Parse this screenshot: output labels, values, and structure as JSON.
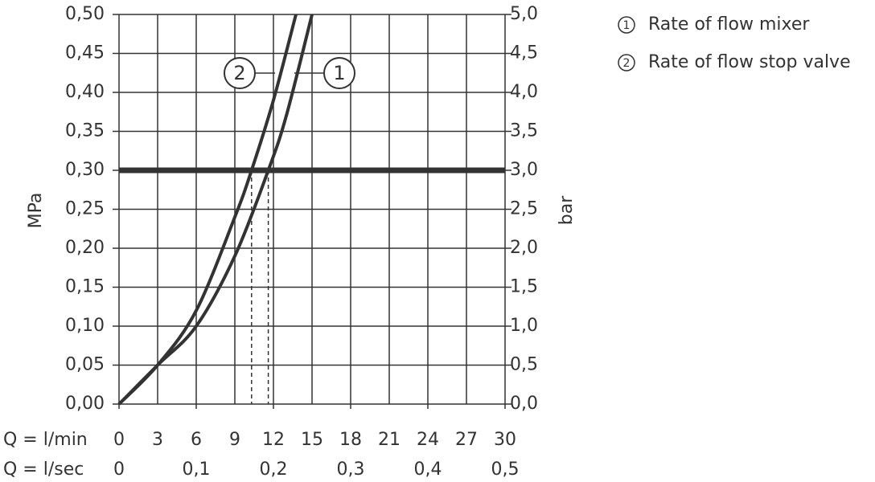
{
  "chart_data": {
    "type": "line",
    "y_label": "MPa",
    "y2_label": "bar",
    "x_label": "Q = l/min",
    "x2_label": "Q = l/sec",
    "xlim": [
      0,
      30
    ],
    "xticks": [
      0,
      3,
      6,
      9,
      12,
      15,
      18,
      21,
      24,
      27,
      30
    ],
    "x2lim": [
      0,
      0.5
    ],
    "x2ticks": [
      0,
      {
        "value": 0.1,
        "label": "0,1"
      },
      {
        "value": 0.2,
        "label": "0,2"
      },
      {
        "value": 0.3,
        "label": "0,3"
      },
      {
        "value": 0.4,
        "label": "0,4"
      },
      {
        "value": 0.5,
        "label": "0,5"
      }
    ],
    "ylim": [
      0,
      0.5
    ],
    "yticks": [
      {
        "value": 0,
        "label": "0,00"
      },
      {
        "value": 0.05,
        "label": "0,05"
      },
      {
        "value": 0.1,
        "label": "0,10"
      },
      {
        "value": 0.15,
        "label": "0,15"
      },
      {
        "value": 0.2,
        "label": "0,20"
      },
      {
        "value": 0.25,
        "label": "0,25"
      },
      {
        "value": 0.3,
        "label": "0,30"
      },
      {
        "value": 0.35,
        "label": "0,35"
      },
      {
        "value": 0.4,
        "label": "0,40"
      },
      {
        "value": 0.45,
        "label": "0,45"
      },
      {
        "value": 0.5,
        "label": "0,50"
      }
    ],
    "y2lim": [
      0,
      5
    ],
    "y2ticks": [
      {
        "value": 0,
        "label": "0,0"
      },
      {
        "value": 0.5,
        "label": "0,5"
      },
      {
        "value": 1,
        "label": "1,0"
      },
      {
        "value": 1.5,
        "label": "1,5"
      },
      {
        "value": 2,
        "label": "2,0"
      },
      {
        "value": 2.5,
        "label": "2,5"
      },
      {
        "value": 3,
        "label": "3,0"
      },
      {
        "value": 3.5,
        "label": "3,5"
      },
      {
        "value": 4,
        "label": "4,0"
      },
      {
        "value": 4.5,
        "label": "4,5"
      },
      {
        "value": 5,
        "label": "5,0"
      }
    ],
    "reference_value": 0.3,
    "grid": true,
    "color": "#333333",
    "series": [
      {
        "name": "Rate of flow mixer",
        "marker": "1",
        "color": "#333333",
        "x": [
          0,
          3,
          6,
          9,
          11.6,
          13,
          15
        ],
        "values": [
          0,
          0.05,
          0.1,
          0.19,
          0.3,
          0.37,
          0.5
        ]
      },
      {
        "name": "Rate of flow stop valve",
        "marker": "2",
        "color": "#333333",
        "x": [
          0,
          3,
          6,
          9,
          10.3,
          12,
          13.75
        ],
        "values": [
          0,
          0.05,
          0.12,
          0.24,
          0.3,
          0.39,
          0.5
        ]
      }
    ]
  }
}
